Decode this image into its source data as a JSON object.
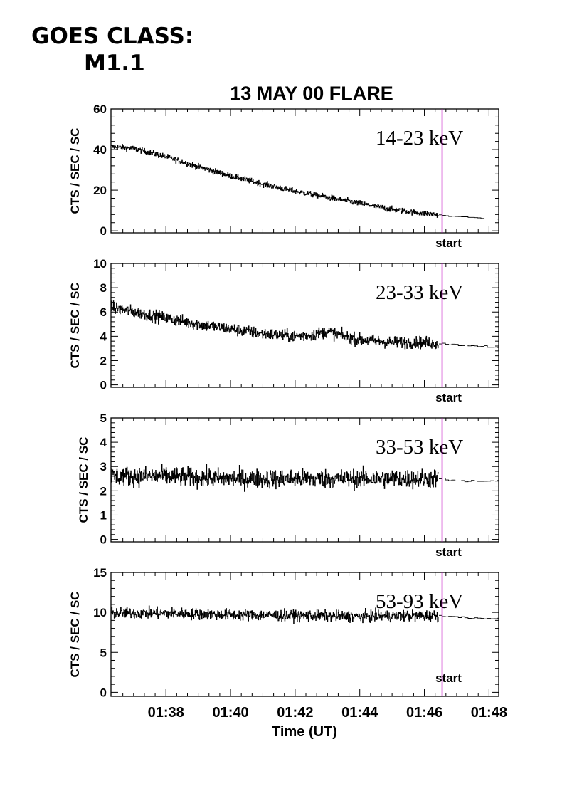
{
  "header": {
    "goes_label": "GOES CLASS:",
    "goes_class": "M1.1"
  },
  "chart_data": {
    "type": "line",
    "title": "13 MAY 00 FLARE",
    "xlabel": "Time (UT)",
    "x_unit": "UT time (minutes after 01:00)",
    "xlim": [
      36.3,
      48.3
    ],
    "x_tick_labels": [
      "01:38",
      "01:40",
      "01:42",
      "01:44",
      "01:46",
      "01:48"
    ],
    "x_ticks": [
      38,
      40,
      42,
      44,
      46,
      48
    ],
    "marker": {
      "x": 46.55,
      "label": "start",
      "color": "#c000c0"
    },
    "panels": [
      {
        "name": "14-23 keV",
        "ylabel": "CTS / SEC / SC",
        "ylim": [
          -1,
          60
        ],
        "yticks": [
          0,
          20,
          40,
          60
        ],
        "series_points": [
          [
            36.3,
            41.5
          ],
          [
            37.0,
            40.5
          ],
          [
            38.0,
            36.5
          ],
          [
            39.0,
            31.5
          ],
          [
            40.0,
            27.0
          ],
          [
            41.0,
            23.0
          ],
          [
            42.0,
            19.5
          ],
          [
            43.0,
            16.5
          ],
          [
            44.0,
            13.5
          ],
          [
            45.0,
            10.5
          ],
          [
            46.0,
            8.5
          ],
          [
            46.4,
            8.0
          ],
          [
            46.6,
            7.3
          ],
          [
            47.0,
            7.0
          ],
          [
            47.5,
            6.5
          ],
          [
            48.3,
            5.5
          ]
        ],
        "noise": 1.0
      },
      {
        "name": "23-33 keV",
        "ylabel": "CTS / SEC / SC",
        "ylim": [
          -0.2,
          10
        ],
        "yticks": [
          0,
          2,
          4,
          6,
          8,
          10
        ],
        "series_points": [
          [
            36.3,
            6.4
          ],
          [
            37.0,
            6.0
          ],
          [
            38.0,
            5.5
          ],
          [
            39.0,
            5.0
          ],
          [
            40.0,
            4.6
          ],
          [
            41.0,
            4.2
          ],
          [
            42.0,
            4.0
          ],
          [
            42.5,
            4.1
          ],
          [
            43.0,
            4.4
          ],
          [
            43.5,
            4.0
          ],
          [
            44.0,
            3.7
          ],
          [
            45.0,
            3.5
          ],
          [
            46.0,
            3.5
          ],
          [
            46.4,
            3.4
          ],
          [
            47.0,
            3.3
          ],
          [
            48.3,
            3.1
          ]
        ],
        "noise": 0.35
      },
      {
        "name": "33-53 keV",
        "ylabel": "CTS / SEC / SC",
        "ylim": [
          -0.1,
          5
        ],
        "yticks": [
          0,
          1,
          2,
          3,
          4,
          5
        ],
        "series_points": [
          [
            36.3,
            2.6
          ],
          [
            38.0,
            2.6
          ],
          [
            40.0,
            2.5
          ],
          [
            42.0,
            2.5
          ],
          [
            44.0,
            2.5
          ],
          [
            46.4,
            2.5
          ],
          [
            47.0,
            2.4
          ],
          [
            48.3,
            2.4
          ]
        ],
        "noise": 0.28
      },
      {
        "name": "53-93 keV",
        "ylabel": "CTS / SEC / SC",
        "ylim": [
          -0.5,
          15
        ],
        "yticks": [
          0,
          5,
          10,
          15
        ],
        "series_points": [
          [
            36.3,
            9.9
          ],
          [
            38.0,
            9.9
          ],
          [
            40.0,
            9.7
          ],
          [
            42.0,
            9.6
          ],
          [
            44.0,
            9.5
          ],
          [
            46.4,
            9.6
          ],
          [
            47.0,
            9.4
          ],
          [
            48.3,
            9.2
          ]
        ],
        "noise": 0.5
      }
    ]
  }
}
